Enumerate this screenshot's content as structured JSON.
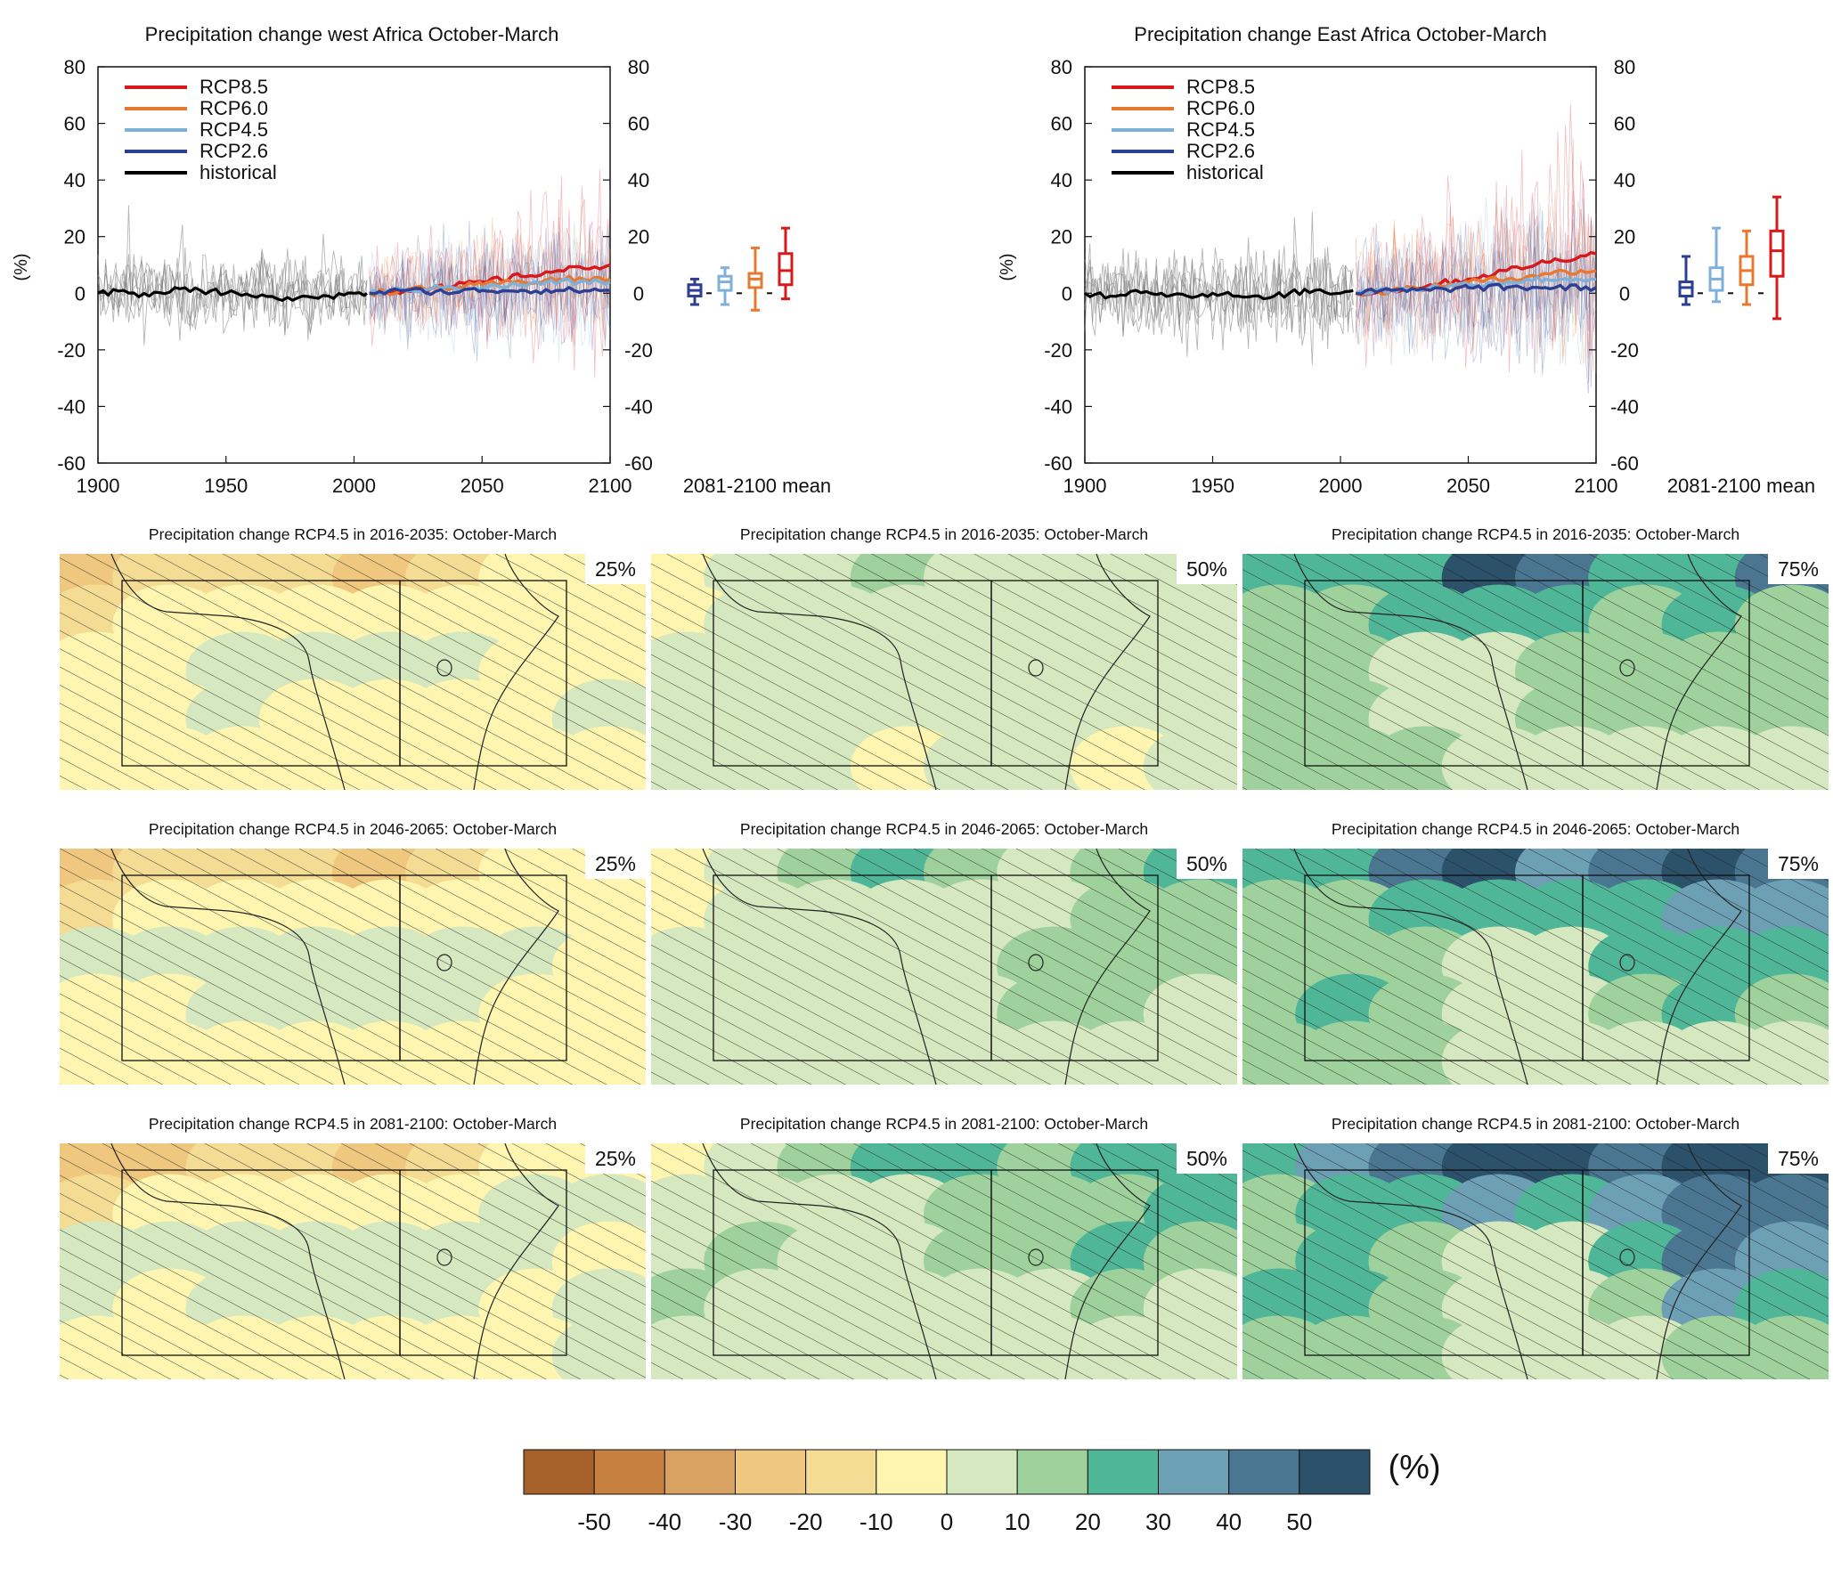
{
  "figure": {
    "colors": {
      "RCP8.5": "#d7191c",
      "RCP6.0": "#e8782f",
      "RCP4.5": "#7fb0d8",
      "RCP2.6": "#2c3f93",
      "historical": "#000000",
      "ensemble_hist": "#7a7a7a"
    }
  },
  "chart_data": [
    {
      "type": "line",
      "title": "Precipitation change west Africa October-March",
      "ylabel": "(%)",
      "xlabel": "",
      "xlim": [
        1900,
        2100
      ],
      "ylim": [
        -60,
        80
      ],
      "x_ticks": [
        1900,
        1950,
        2000,
        2050,
        2100
      ],
      "y_ticks": [
        -60,
        -40,
        -20,
        0,
        20,
        40,
        60,
        80
      ],
      "legend": {
        "placement": "top-left",
        "entries": [
          "RCP8.5",
          "RCP6.0",
          "RCP4.5",
          "RCP2.6",
          "historical"
        ]
      },
      "series": [
        {
          "name": "historical",
          "x": [
            1900,
            1910,
            1920,
            1930,
            1940,
            1950,
            1960,
            1970,
            1980,
            1990,
            2000,
            2005
          ],
          "values": [
            0,
            1,
            -1,
            2,
            1,
            0,
            -1,
            -2,
            -1,
            -1,
            0,
            0
          ]
        },
        {
          "name": "RCP2.6",
          "x": [
            2006,
            2020,
            2035,
            2050,
            2065,
            2080,
            2100
          ],
          "values": [
            0,
            1,
            0.5,
            1,
            1,
            1,
            1
          ]
        },
        {
          "name": "RCP4.5",
          "x": [
            2006,
            2020,
            2035,
            2050,
            2065,
            2080,
            2100
          ],
          "values": [
            0,
            1,
            2,
            2,
            3,
            4,
            4
          ]
        },
        {
          "name": "RCP6.0",
          "x": [
            2006,
            2020,
            2035,
            2050,
            2065,
            2080,
            2100
          ],
          "values": [
            0,
            1,
            2,
            3,
            4,
            5,
            5
          ]
        },
        {
          "name": "RCP8.5",
          "x": [
            2006,
            2020,
            2035,
            2050,
            2065,
            2080,
            2100
          ],
          "values": [
            0,
            1,
            2,
            4,
            6,
            8,
            10
          ]
        }
      ],
      "boxplot": {
        "label": "2081-2100 mean",
        "boxes": [
          {
            "name": "RCP2.6",
            "min": -4,
            "q1": -1,
            "median": 1,
            "q3": 3,
            "max": 5
          },
          {
            "name": "RCP4.5",
            "min": -4,
            "q1": 1,
            "median": 4,
            "q3": 6,
            "max": 9
          },
          {
            "name": "RCP6.0",
            "min": -6,
            "q1": 2,
            "median": 5,
            "q3": 7,
            "max": 16
          },
          {
            "name": "RCP8.5",
            "min": -2,
            "q1": 3,
            "median": 8,
            "q3": 14,
            "max": 23
          }
        ]
      }
    },
    {
      "type": "line",
      "title": "Precipitation change East Africa October-March",
      "ylabel": "(%)",
      "xlabel": "",
      "xlim": [
        1900,
        2100
      ],
      "ylim": [
        -60,
        80
      ],
      "x_ticks": [
        1900,
        1950,
        2000,
        2050,
        2100
      ],
      "y_ticks": [
        -60,
        -40,
        -20,
        0,
        20,
        40,
        60,
        80
      ],
      "legend": {
        "placement": "top-left",
        "entries": [
          "RCP8.5",
          "RCP6.0",
          "RCP4.5",
          "RCP2.6",
          "historical"
        ]
      },
      "series": [
        {
          "name": "historical",
          "x": [
            1900,
            1910,
            1920,
            1930,
            1940,
            1950,
            1960,
            1970,
            1980,
            1990,
            2000,
            2005
          ],
          "values": [
            0,
            -1,
            1,
            0,
            -1,
            0,
            -1,
            -2,
            0,
            1,
            0,
            1
          ]
        },
        {
          "name": "RCP2.6",
          "x": [
            2006,
            2020,
            2035,
            2050,
            2065,
            2080,
            2100
          ],
          "values": [
            0,
            1,
            1,
            2,
            2,
            2,
            2
          ]
        },
        {
          "name": "RCP4.5",
          "x": [
            2006,
            2020,
            2035,
            2050,
            2065,
            2080,
            2100
          ],
          "values": [
            0,
            1,
            2,
            3,
            4,
            5,
            5
          ]
        },
        {
          "name": "RCP6.0",
          "x": [
            2006,
            2020,
            2035,
            2050,
            2065,
            2080,
            2100
          ],
          "values": [
            0,
            1,
            2,
            4,
            5,
            7,
            8
          ]
        },
        {
          "name": "RCP8.5",
          "x": [
            2006,
            2020,
            2035,
            2050,
            2065,
            2080,
            2100
          ],
          "values": [
            0,
            1,
            3,
            5,
            8,
            11,
            14
          ]
        }
      ],
      "boxplot": {
        "label": "2081-2100 mean",
        "boxes": [
          {
            "name": "RCP2.6",
            "min": -4,
            "q1": -1,
            "median": 2,
            "q3": 4,
            "max": 13
          },
          {
            "name": "RCP4.5",
            "min": -3,
            "q1": 1,
            "median": 5,
            "q3": 9,
            "max": 23
          },
          {
            "name": "RCP6.0",
            "min": -4,
            "q1": 3,
            "median": 8,
            "q3": 13,
            "max": 22
          },
          {
            "name": "RCP8.5",
            "min": -9,
            "q1": 6,
            "median": 15,
            "q3": 22,
            "max": 34
          }
        ]
      }
    },
    {
      "type": "heatmap",
      "panels": [
        {
          "title": "Precipitation change RCP4.5 in 2016-2035: October-March",
          "percentile": "25%",
          "period": "2016-2035",
          "values": [
            [
              -25,
              -20,
              -15,
              -20,
              -25,
              -15,
              -10,
              -5
            ],
            [
              -15,
              -10,
              -5,
              -10,
              -10,
              -5,
              -5,
              -5
            ],
            [
              -5,
              -5,
              0,
              5,
              0,
              0,
              -5,
              -5
            ],
            [
              -5,
              -5,
              0,
              -5,
              -5,
              -5,
              -5,
              0
            ],
            [
              -5,
              -5,
              -5,
              -5,
              -10,
              -5,
              -5,
              -5
            ]
          ]
        },
        {
          "title": "Precipitation change RCP4.5 in 2016-2035: October-March",
          "percentile": "50%",
          "period": "2016-2035",
          "values": [
            [
              -5,
              5,
              5,
              15,
              5,
              0,
              5,
              5
            ],
            [
              -5,
              5,
              5,
              5,
              5,
              5,
              5,
              5
            ],
            [
              5,
              5,
              5,
              5,
              5,
              5,
              5,
              5
            ],
            [
              5,
              5,
              5,
              5,
              0,
              0,
              5,
              5
            ],
            [
              0,
              0,
              0,
              -5,
              0,
              0,
              -5,
              5
            ]
          ]
        },
        {
          "title": "Precipitation change RCP4.5 in 2016-2035: October-March",
          "percentile": "75%",
          "period": "2016-2035",
          "values": [
            [
              25,
              20,
              25,
              55,
              45,
              20,
              25,
              45
            ],
            [
              15,
              15,
              20,
              25,
              20,
              15,
              20,
              15
            ],
            [
              15,
              15,
              5,
              5,
              15,
              15,
              15,
              15
            ],
            [
              15,
              15,
              5,
              5,
              15,
              15,
              15,
              15
            ],
            [
              15,
              15,
              15,
              5,
              5,
              5,
              5,
              5
            ]
          ]
        },
        {
          "title": "Precipitation change RCP4.5 in 2046-2065: October-March",
          "percentile": "25%",
          "period": "2046-2065",
          "values": [
            [
              -25,
              -20,
              -15,
              -20,
              -25,
              -15,
              -10,
              -5
            ],
            [
              -15,
              -10,
              -5,
              -5,
              -5,
              -5,
              -5,
              -5
            ],
            [
              5,
              5,
              5,
              5,
              5,
              5,
              5,
              -5
            ],
            [
              -5,
              -5,
              0,
              5,
              5,
              5,
              -5,
              -5
            ],
            [
              -5,
              -5,
              -10,
              -5,
              -5,
              -5,
              -5,
              -5
            ]
          ]
        },
        {
          "title": "Precipitation change RCP4.5 in 2046-2065: October-March",
          "percentile": "50%",
          "period": "2046-2065",
          "values": [
            [
              -5,
              5,
              10,
              25,
              15,
              5,
              15,
              25
            ],
            [
              -5,
              5,
              5,
              5,
              5,
              5,
              15,
              15
            ],
            [
              5,
              5,
              5,
              5,
              5,
              15,
              15,
              15
            ],
            [
              5,
              5,
              5,
              5,
              5,
              15,
              15,
              5
            ],
            [
              0,
              0,
              0,
              5,
              5,
              5,
              5,
              5
            ]
          ]
        },
        {
          "title": "Precipitation change RCP4.5 in 2046-2065: October-March",
          "percentile": "75%",
          "period": "2046-2065",
          "values": [
            [
              25,
              25,
              45,
              55,
              35,
              45,
              55,
              45
            ],
            [
              15,
              15,
              25,
              25,
              25,
              25,
              35,
              35
            ],
            [
              15,
              15,
              15,
              5,
              5,
              25,
              25,
              25
            ],
            [
              15,
              25,
              15,
              5,
              5,
              15,
              25,
              15
            ],
            [
              15,
              15,
              15,
              5,
              5,
              5,
              5,
              5
            ]
          ]
        },
        {
          "title": "Precipitation change RCP4.5 in 2081-2100: October-March",
          "percentile": "25%",
          "period": "2081-2100",
          "values": [
            [
              -25,
              -25,
              -15,
              -20,
              -25,
              -15,
              -10,
              -5
            ],
            [
              -15,
              -10,
              -5,
              -5,
              -5,
              -5,
              5,
              5
            ],
            [
              5,
              5,
              5,
              5,
              5,
              5,
              5,
              -5
            ],
            [
              5,
              -5,
              5,
              5,
              5,
              5,
              -5,
              5
            ],
            [
              -5,
              -5,
              -5,
              -5,
              -5,
              -5,
              -5,
              5
            ]
          ]
        },
        {
          "title": "Precipitation change RCP4.5 in 2081-2100: October-March",
          "percentile": "50%",
          "period": "2081-2100",
          "values": [
            [
              -5,
              5,
              15,
              25,
              25,
              15,
              25,
              25
            ],
            [
              5,
              5,
              5,
              5,
              15,
              15,
              15,
              25
            ],
            [
              5,
              15,
              5,
              5,
              15,
              15,
              25,
              15
            ],
            [
              15,
              5,
              5,
              5,
              5,
              5,
              15,
              5
            ],
            [
              5,
              5,
              5,
              5,
              5,
              5,
              5,
              5
            ]
          ]
        },
        {
          "title": "Precipitation change RCP4.5 in 2081-2100: October-March",
          "percentile": "75%",
          "period": "2081-2100",
          "values": [
            [
              25,
              35,
              45,
              55,
              55,
              45,
              55,
              55
            ],
            [
              15,
              25,
              25,
              35,
              25,
              35,
              45,
              45
            ],
            [
              15,
              25,
              15,
              5,
              5,
              25,
              45,
              35
            ],
            [
              25,
              25,
              15,
              5,
              5,
              15,
              35,
              25
            ],
            [
              15,
              15,
              15,
              5,
              5,
              5,
              15,
              15
            ]
          ]
        }
      ]
    },
    {
      "type": "colorbar",
      "unit": "(%)",
      "tick_labels": [
        "-50",
        "-40",
        "-30",
        "-20",
        "-10",
        "0",
        "10",
        "20",
        "30",
        "40",
        "50"
      ],
      "colors": [
        "#a6612a",
        "#c68141",
        "#daa262",
        "#efc77e",
        "#f5dc94",
        "#fdf5b0",
        "#d5e8bf",
        "#9fd19d",
        "#4fb797",
        "#6d9fb5",
        "#4a7691",
        "#2c516b"
      ]
    }
  ]
}
